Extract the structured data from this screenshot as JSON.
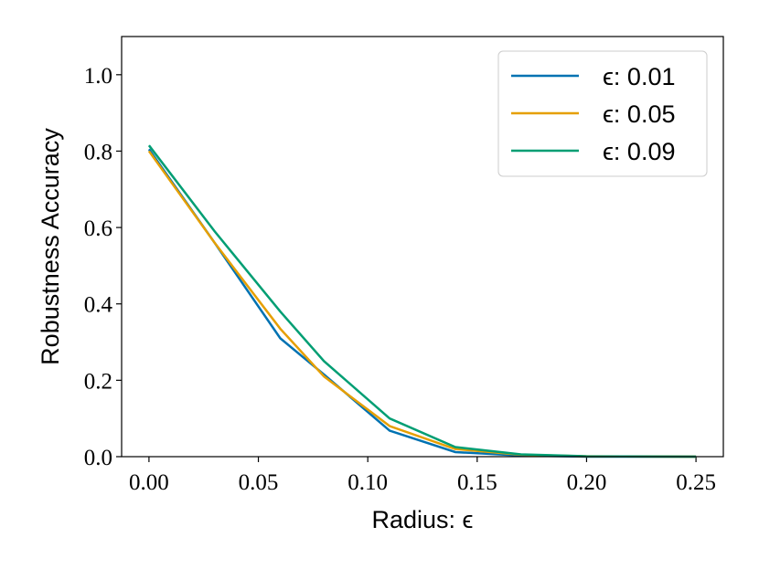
{
  "chart_data": {
    "type": "line",
    "xlabel": "Radius: ϵ",
    "ylabel": "Robustness Accuracy",
    "x": [
      0,
      0.03,
      0.06,
      0.08,
      0.11,
      0.14,
      0.17,
      0.2,
      0.25
    ],
    "series": [
      {
        "name": "ϵ: 0.01",
        "color": "#0072b2",
        "values": [
          0.805,
          0.56,
          0.31,
          0.215,
          0.068,
          0.012,
          0.003,
          0,
          0
        ]
      },
      {
        "name": "ϵ: 0.05",
        "color": "#e69f00",
        "values": [
          0.8,
          0.56,
          0.335,
          0.21,
          0.08,
          0.02,
          0.005,
          0.001,
          0
        ]
      },
      {
        "name": "ϵ: 0.09",
        "color": "#009e73",
        "values": [
          0.815,
          0.59,
          0.38,
          0.25,
          0.1,
          0.025,
          0.006,
          0.001,
          0
        ]
      }
    ],
    "xlim": [
      -0.0125,
      0.2625
    ],
    "xticks": [
      {
        "value": 0,
        "label": "0.00"
      },
      {
        "value": 0.05,
        "label": "0.05"
      },
      {
        "value": 0.1,
        "label": "0.10"
      },
      {
        "value": 0.15,
        "label": "0.15"
      },
      {
        "value": 0.2,
        "label": "0.20"
      },
      {
        "value": 0.25,
        "label": "0.25"
      }
    ],
    "ylim": [
      0,
      1.1
    ],
    "yticks": [
      {
        "value": 0,
        "label": "0.0"
      },
      {
        "value": 0.2,
        "label": "0.2"
      },
      {
        "value": 0.4,
        "label": "0.4"
      },
      {
        "value": 0.6,
        "label": "0.6"
      },
      {
        "value": 0.8,
        "label": "0.8"
      },
      {
        "value": 1,
        "label": "1.0"
      }
    ],
    "legend": "upper right",
    "grid": false
  }
}
